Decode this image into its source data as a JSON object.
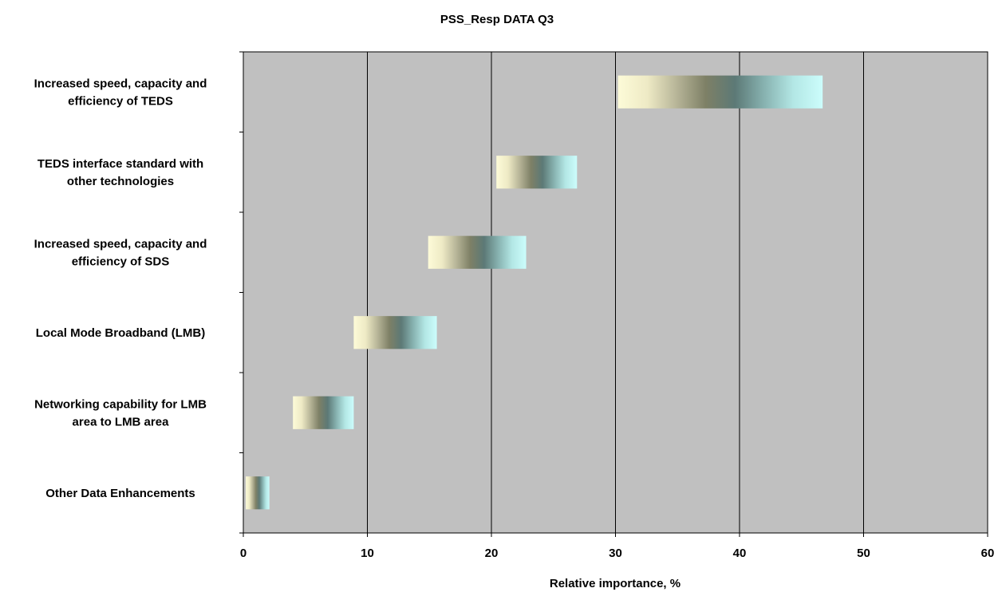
{
  "chart_data": {
    "type": "bar",
    "orientation": "horizontal",
    "title": "PSS_Resp DATA Q3",
    "xlabel": "Relative importance, %",
    "ylabel": "",
    "xlim": [
      0,
      60
    ],
    "xticks": [
      "0",
      "10",
      "20",
      "30",
      "40",
      "50",
      "60"
    ],
    "grid": "vertical",
    "plot_background": "#c0c0c0",
    "bar_gradient": [
      "#fdfbd8",
      "#eeeac5",
      "#b7b598",
      "#7e8066",
      "#5c7976",
      "#87b2b0",
      "#b3e7e5",
      "#ccfdfc"
    ],
    "categories": [
      {
        "lines": [
          "Increased speed, capacity and",
          "efficiency of TEDS"
        ]
      },
      {
        "lines": [
          "TEDS interface standard with",
          "other technologies"
        ]
      },
      {
        "lines": [
          "Increased speed, capacity and",
          "efficiency of SDS"
        ]
      },
      {
        "lines": [
          "Local Mode Broadband (LMB)"
        ]
      },
      {
        "lines": [
          "Networking capability for LMB",
          "area to LMB area"
        ]
      },
      {
        "lines": [
          "Other Data Enhancements"
        ]
      }
    ],
    "ranges": [
      {
        "low": 30.2,
        "mid": 38.5,
        "high": 46.7
      },
      {
        "low": 20.4,
        "mid": 23.7,
        "high": 26.9
      },
      {
        "low": 14.9,
        "mid": 18.8,
        "high": 22.8
      },
      {
        "low": 8.9,
        "mid": 12.2,
        "high": 15.6
      },
      {
        "low": 4.0,
        "mid": 6.4,
        "high": 8.9
      },
      {
        "low": 0.2,
        "mid": 0.7,
        "high": 2.1
      }
    ]
  }
}
